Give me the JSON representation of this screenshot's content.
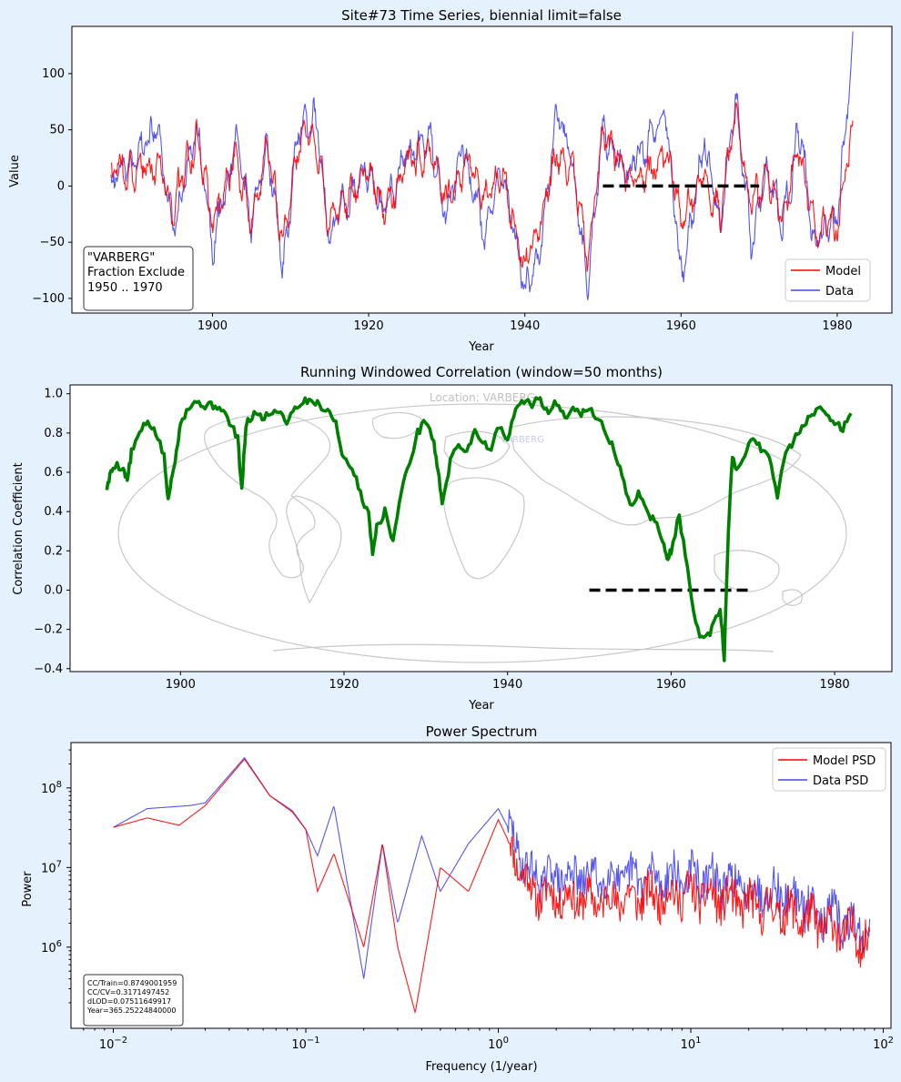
{
  "figure": {
    "background": "#e6f1fe"
  },
  "chart_data": [
    {
      "type": "line",
      "title": "Site#73 Time Series, biennial limit=false",
      "xlabel": "Year",
      "ylabel": "Value",
      "xlim": [
        1882,
        1987
      ],
      "ylim": [
        -113,
        142
      ],
      "xticks": [
        1900,
        1920,
        1940,
        1960,
        1980
      ],
      "yticks": [
        -100,
        -50,
        0,
        50,
        100
      ],
      "annotation": [
        "\"VARBERG\"",
        "Fraction Exclude",
        "1950 .. 1970"
      ],
      "excluded_range": {
        "x": [
          1950,
          1970
        ],
        "y": 0,
        "color": "#000000"
      },
      "legend": {
        "position": "lower-right",
        "entries": [
          "Model",
          "Data"
        ]
      },
      "series": [
        {
          "name": "Model",
          "color": "#ff0000",
          "x_start": 1887,
          "x_end": 1982,
          "seed": 73,
          "anchors": [
            [
              1887,
              10
            ],
            [
              1893,
              20
            ],
            [
              1895,
              -25
            ],
            [
              1898,
              45
            ],
            [
              1900,
              -35
            ],
            [
              1903,
              25
            ],
            [
              1905,
              -30
            ],
            [
              1907,
              35
            ],
            [
              1909,
              -55
            ],
            [
              1911,
              40
            ],
            [
              1913,
              45
            ],
            [
              1915,
              -30
            ],
            [
              1920,
              15
            ],
            [
              1922,
              -20
            ],
            [
              1925,
              20
            ],
            [
              1928,
              30
            ],
            [
              1930,
              -10
            ],
            [
              1932,
              20
            ],
            [
              1935,
              -5
            ],
            [
              1937,
              10
            ],
            [
              1940,
              -70
            ],
            [
              1942,
              -40
            ],
            [
              1944,
              30
            ],
            [
              1946,
              25
            ],
            [
              1948,
              -60
            ],
            [
              1950,
              45
            ],
            [
              1953,
              10
            ],
            [
              1956,
              10
            ],
            [
              1958,
              30
            ],
            [
              1960,
              -30
            ],
            [
              1963,
              10
            ],
            [
              1965,
              -20
            ],
            [
              1967,
              60
            ],
            [
              1969,
              -15
            ],
            [
              1971,
              10
            ],
            [
              1973,
              -30
            ],
            [
              1975,
              40
            ],
            [
              1977,
              -30
            ],
            [
              1980,
              -40
            ],
            [
              1982,
              55
            ]
          ]
        },
        {
          "name": "Data",
          "color": "#4444ee",
          "x_start": 1887,
          "x_end": 1982,
          "seed": 91,
          "anchors": [
            [
              1887,
              5
            ],
            [
              1893,
              55
            ],
            [
              1895,
              -40
            ],
            [
              1898,
              60
            ],
            [
              1900,
              -60
            ],
            [
              1903,
              45
            ],
            [
              1905,
              -40
            ],
            [
              1907,
              40
            ],
            [
              1909,
              -70
            ],
            [
              1911,
              50
            ],
            [
              1913,
              65
            ],
            [
              1915,
              -40
            ],
            [
              1920,
              15
            ],
            [
              1922,
              -25
            ],
            [
              1925,
              30
            ],
            [
              1928,
              45
            ],
            [
              1930,
              -30
            ],
            [
              1932,
              35
            ],
            [
              1935,
              -40
            ],
            [
              1937,
              15
            ],
            [
              1940,
              -90
            ],
            [
              1942,
              -60
            ],
            [
              1944,
              60
            ],
            [
              1946,
              30
            ],
            [
              1948,
              -90
            ],
            [
              1950,
              50
            ],
            [
              1953,
              15
            ],
            [
              1956,
              40
            ],
            [
              1958,
              60
            ],
            [
              1960,
              -80
            ],
            [
              1963,
              40
            ],
            [
              1965,
              -40
            ],
            [
              1967,
              80
            ],
            [
              1969,
              -50
            ],
            [
              1971,
              20
            ],
            [
              1973,
              -40
            ],
            [
              1975,
              55
            ],
            [
              1977,
              -45
            ],
            [
              1980,
              -30
            ],
            [
              1982,
              125
            ]
          ]
        }
      ]
    },
    {
      "type": "line",
      "title": "Running Windowed Correlation (window=50 months)",
      "xlabel": "Year",
      "ylabel": "Correlation Coefficient",
      "xlim": [
        1886.5,
        1987
      ],
      "ylim": [
        -0.415,
        1.045
      ],
      "xticks": [
        1900,
        1920,
        1940,
        1960,
        1980
      ],
      "yticks": [
        -0.4,
        -0.2,
        0.0,
        0.2,
        0.4,
        0.6,
        0.8,
        1.0
      ],
      "background_map": {
        "location_text": "Location: VARBERG",
        "marker_text": "VARBERG"
      },
      "excluded_range": {
        "x": [
          1950,
          1970
        ],
        "y": 0.0,
        "color": "#000000"
      },
      "series": [
        {
          "name": "Correlation",
          "color": "#008000",
          "points": [
            [
              1891,
              0.52
            ],
            [
              1891.5,
              0.6
            ],
            [
              1892,
              0.64
            ],
            [
              1893,
              0.62
            ],
            [
              1893.5,
              0.56
            ],
            [
              1894,
              0.7
            ],
            [
              1895,
              0.8
            ],
            [
              1896,
              0.86
            ],
            [
              1897,
              0.8
            ],
            [
              1898,
              0.68
            ],
            [
              1898.5,
              0.45
            ],
            [
              1899,
              0.6
            ],
            [
              1899.5,
              0.7
            ],
            [
              1900,
              0.86
            ],
            [
              1901,
              0.93
            ],
            [
              1902,
              0.96
            ],
            [
              1903,
              0.94
            ],
            [
              1904,
              0.94
            ],
            [
              1905,
              0.93
            ],
            [
              1906,
              0.85
            ],
            [
              1907,
              0.78
            ],
            [
              1907.5,
              0.5
            ],
            [
              1908,
              0.84
            ],
            [
              1909,
              0.9
            ],
            [
              1910,
              0.88
            ],
            [
              1911,
              0.9
            ],
            [
              1912,
              0.92
            ],
            [
              1913,
              0.86
            ],
            [
              1914,
              0.93
            ],
            [
              1915,
              0.96
            ],
            [
              1916,
              0.97
            ],
            [
              1917,
              0.94
            ],
            [
              1918,
              0.92
            ],
            [
              1919,
              0.85
            ],
            [
              1920,
              0.66
            ],
            [
              1921,
              0.62
            ],
            [
              1922,
              0.5
            ],
            [
              1923,
              0.38
            ],
            [
              1923.5,
              0.2
            ],
            [
              1924,
              0.32
            ],
            [
              1925,
              0.4
            ],
            [
              1926,
              0.25
            ],
            [
              1927,
              0.5
            ],
            [
              1928,
              0.65
            ],
            [
              1929,
              0.8
            ],
            [
              1930,
              0.87
            ],
            [
              1931,
              0.75
            ],
            [
              1931.5,
              0.6
            ],
            [
              1932,
              0.45
            ],
            [
              1933,
              0.65
            ],
            [
              1934,
              0.75
            ],
            [
              1935,
              0.7
            ],
            [
              1936,
              0.82
            ],
            [
              1937,
              0.75
            ],
            [
              1938,
              0.72
            ],
            [
              1939,
              0.84
            ],
            [
              1940,
              0.75
            ],
            [
              1941,
              0.93
            ],
            [
              1942,
              0.96
            ],
            [
              1943,
              0.95
            ],
            [
              1944,
              0.97
            ],
            [
              1945,
              0.9
            ],
            [
              1946,
              0.96
            ],
            [
              1947,
              0.88
            ],
            [
              1948,
              0.94
            ],
            [
              1949,
              0.9
            ],
            [
              1950,
              0.92
            ],
            [
              1951,
              0.88
            ],
            [
              1952,
              0.8
            ],
            [
              1953,
              0.72
            ],
            [
              1954,
              0.58
            ],
            [
              1955,
              0.42
            ],
            [
              1956,
              0.5
            ],
            [
              1957,
              0.4
            ],
            [
              1958,
              0.35
            ],
            [
              1959,
              0.26
            ],
            [
              1959.5,
              0.15
            ],
            [
              1960,
              0.2
            ],
            [
              1961,
              0.38
            ],
            [
              1962,
              0.1
            ],
            [
              1963,
              -0.18
            ],
            [
              1964,
              -0.26
            ],
            [
              1965,
              -0.2
            ],
            [
              1966,
              -0.1
            ],
            [
              1966.5,
              -0.34
            ],
            [
              1967,
              0.3
            ],
            [
              1967.5,
              0.68
            ],
            [
              1968,
              0.6
            ],
            [
              1969,
              0.7
            ],
            [
              1970,
              0.78
            ],
            [
              1971,
              0.72
            ],
            [
              1972,
              0.68
            ],
            [
              1973,
              0.48
            ],
            [
              1974,
              0.7
            ],
            [
              1975,
              0.76
            ],
            [
              1976,
              0.84
            ],
            [
              1977,
              0.88
            ],
            [
              1978,
              0.93
            ],
            [
              1979,
              0.9
            ],
            [
              1980,
              0.86
            ],
            [
              1981,
              0.82
            ],
            [
              1982,
              0.9
            ]
          ]
        }
      ]
    },
    {
      "type": "line",
      "title": "Power Spectrum",
      "xlabel": "Frequency (1/year)",
      "ylabel": "Power",
      "xscale": "log",
      "yscale": "log",
      "xlim_log10": [
        -2.22,
        2.04
      ],
      "ylim_log10": [
        4.98,
        8.57
      ],
      "xticks": [
        "10^-2",
        "10^-1",
        "10^0",
        "10^1",
        "10^2"
      ],
      "yticks": [
        "10^6",
        "10^7",
        "10^8"
      ],
      "legend": {
        "position": "top-right",
        "entries": [
          "Model PSD",
          "Data PSD"
        ]
      },
      "stats": [
        "CC/Train=0.8749001959",
        "CC/CV=0.3171497452",
        "dLOD=0.07511649917",
        "Year=365.25224840000"
      ],
      "series": [
        {
          "name": "Model PSD",
          "color": "#ff0000",
          "seed": 11,
          "anchors": [
            [
              0.01,
              32000000.0
            ],
            [
              0.015,
              42000000.0
            ],
            [
              0.022,
              34000000.0
            ],
            [
              0.03,
              60000000.0
            ],
            [
              0.048,
              230000000.0
            ],
            [
              0.065,
              80000000.0
            ],
            [
              0.085,
              50000000.0
            ],
            [
              0.1,
              30000000.0
            ],
            [
              0.115,
              5000000.0
            ],
            [
              0.14,
              15000000.0
            ],
            [
              0.2,
              1000000.0
            ],
            [
              0.25,
              20000000.0
            ],
            [
              0.3,
              1000000.0
            ],
            [
              0.37,
              150000.0
            ],
            [
              0.5,
              10000000.0
            ],
            [
              0.7,
              5000000.0
            ],
            [
              1.0,
              40000000.0
            ],
            [
              1.5,
              5000000.0
            ],
            [
              3,
              4000000.0
            ],
            [
              10,
              5000000.0
            ],
            [
              30,
              3000000.0
            ],
            [
              85,
              1300000.0
            ]
          ]
        },
        {
          "name": "Data PSD",
          "color": "#4444ee",
          "seed": 29,
          "anchors": [
            [
              0.01,
              32000000.0
            ],
            [
              0.015,
              55000000.0
            ],
            [
              0.025,
              60000000.0
            ],
            [
              0.03,
              65000000.0
            ],
            [
              0.048,
              240000000.0
            ],
            [
              0.065,
              80000000.0
            ],
            [
              0.085,
              52000000.0
            ],
            [
              0.1,
              30000000.0
            ],
            [
              0.115,
              14000000.0
            ],
            [
              0.14,
              60000000.0
            ],
            [
              0.2,
              400000.0
            ],
            [
              0.25,
              20000000.0
            ],
            [
              0.3,
              2000000.0
            ],
            [
              0.4,
              25000000.0
            ],
            [
              0.5,
              5000000.0
            ],
            [
              0.7,
              20000000.0
            ],
            [
              1.0,
              55000000.0
            ],
            [
              1.5,
              8000000.0
            ],
            [
              3,
              8000000.0
            ],
            [
              10,
              8000000.0
            ],
            [
              30,
              5000000.0
            ],
            [
              85,
              1500000.0
            ]
          ]
        }
      ]
    }
  ]
}
